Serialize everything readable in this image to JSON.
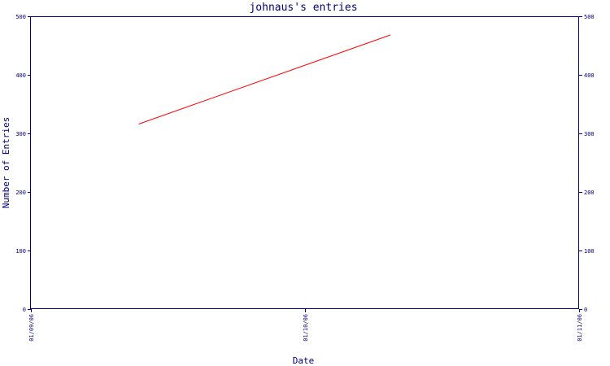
{
  "chart_data": {
    "type": "line",
    "title": "johnaus's entries",
    "xlabel": "Date",
    "ylabel": "Number of Entries",
    "x_tick_labels": [
      "01/09/06",
      "01/10/06",
      "01/11/06"
    ],
    "x_range": [
      "2006-09-01",
      "2006-11-01"
    ],
    "ylim": [
      0,
      500
    ],
    "y_ticks": [
      0,
      100,
      200,
      300,
      400,
      500
    ],
    "y_ticks_right": true,
    "grid": false,
    "series": [
      {
        "color": "#ff0000",
        "points": [
          {
            "x": "2006-09-13",
            "y": 316
          },
          {
            "x": "2006-10-11",
            "y": 468
          }
        ]
      }
    ]
  }
}
